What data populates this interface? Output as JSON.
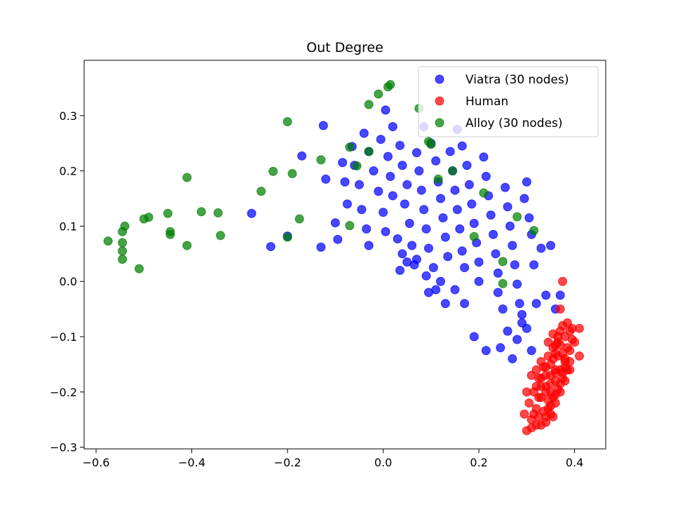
{
  "chart_data": {
    "type": "scatter",
    "title": "Out Degree",
    "xlabel": "",
    "ylabel": "",
    "xlim": [
      -0.625,
      0.465
    ],
    "ylim": [
      -0.303,
      0.4
    ],
    "xticks": [
      -0.6,
      -0.4,
      -0.2,
      0.0,
      0.2,
      0.4
    ],
    "xtick_labels": [
      "−0.6",
      "−0.4",
      "−0.2",
      "0.0",
      "0.2",
      "0.4"
    ],
    "yticks": [
      -0.3,
      -0.2,
      -0.1,
      0.0,
      0.1,
      0.2,
      0.3
    ],
    "ytick_labels": [
      "−0.3",
      "−0.2",
      "−0.1",
      "0.0",
      "0.1",
      "0.2",
      "0.3"
    ],
    "grid": false,
    "legend_position": "top-right",
    "series": [
      {
        "name": "Viatra (30 nodes)",
        "color": "#0000ff",
        "points": [
          [
            -0.275,
            0.123
          ],
          [
            -0.235,
            0.063
          ],
          [
            -0.2,
            0.082
          ],
          [
            -0.17,
            0.227
          ],
          [
            -0.13,
            0.062
          ],
          [
            -0.125,
            0.282
          ],
          [
            -0.12,
            0.185
          ],
          [
            -0.1,
            0.106
          ],
          [
            -0.095,
            0.076
          ],
          [
            -0.085,
            0.215
          ],
          [
            -0.08,
            0.18
          ],
          [
            -0.075,
            0.14
          ],
          [
            -0.065,
            0.244
          ],
          [
            -0.06,
            0.21
          ],
          [
            -0.05,
            0.175
          ],
          [
            -0.045,
            0.13
          ],
          [
            -0.04,
            0.268
          ],
          [
            -0.035,
            0.095
          ],
          [
            -0.03,
            0.235
          ],
          [
            -0.03,
            0.065
          ],
          [
            -0.02,
            0.2
          ],
          [
            -0.01,
            0.163
          ],
          [
            -0.005,
            0.257
          ],
          [
            0.0,
            0.125
          ],
          [
            0.005,
            0.09
          ],
          [
            0.005,
            0.31
          ],
          [
            0.01,
            0.226
          ],
          [
            0.015,
            0.19
          ],
          [
            0.02,
            0.155
          ],
          [
            0.02,
            0.28
          ],
          [
            0.03,
            0.077
          ],
          [
            0.035,
            0.246
          ],
          [
            0.04,
            0.21
          ],
          [
            0.045,
            0.14
          ],
          [
            0.05,
            0.175
          ],
          [
            0.055,
            0.105
          ],
          [
            0.06,
            0.065
          ],
          [
            0.065,
            0.03
          ],
          [
            0.07,
            0.233
          ],
          [
            0.075,
            0.2
          ],
          [
            0.08,
            0.165
          ],
          [
            0.085,
            0.13
          ],
          [
            0.09,
            0.095
          ],
          [
            0.085,
            0.28
          ],
          [
            0.095,
            0.06
          ],
          [
            0.1,
            0.25
          ],
          [
            0.105,
            0.025
          ],
          [
            0.11,
            0.218
          ],
          [
            0.115,
            0.18
          ],
          [
            0.12,
            0.15
          ],
          [
            0.125,
            0.115
          ],
          [
            0.13,
            0.08
          ],
          [
            0.135,
            0.045
          ],
          [
            0.14,
            0.235
          ],
          [
            0.145,
            0.2
          ],
          [
            0.15,
            0.165
          ],
          [
            0.155,
            0.13
          ],
          [
            0.16,
            0.095
          ],
          [
            0.155,
            0.275
          ],
          [
            0.165,
            0.055
          ],
          [
            0.17,
            0.025
          ],
          [
            0.165,
            0.245
          ],
          [
            0.175,
            0.21
          ],
          [
            0.18,
            0.175
          ],
          [
            0.185,
            0.14
          ],
          [
            0.19,
            0.105
          ],
          [
            0.195,
            0.07
          ],
          [
            0.2,
            0.035
          ],
          [
            0.2,
            0.0
          ],
          [
            0.21,
            0.225
          ],
          [
            0.215,
            0.19
          ],
          [
            0.22,
            0.155
          ],
          [
            0.225,
            0.12
          ],
          [
            0.23,
            0.085
          ],
          [
            0.235,
            0.05
          ],
          [
            0.24,
            0.015
          ],
          [
            0.24,
            -0.02
          ],
          [
            0.25,
            -0.05
          ],
          [
            0.255,
            0.17
          ],
          [
            0.26,
            0.135
          ],
          [
            0.265,
            0.1
          ],
          [
            0.27,
            0.065
          ],
          [
            0.275,
            0.03
          ],
          [
            0.28,
            -0.005
          ],
          [
            0.285,
            -0.04
          ],
          [
            0.29,
            -0.075
          ],
          [
            0.295,
            0.15
          ],
          [
            0.3,
            0.18
          ],
          [
            0.305,
            0.115
          ],
          [
            0.31,
            0.085
          ],
          [
            0.315,
            0.03
          ],
          [
            0.32,
            -0.04
          ],
          [
            0.33,
            0.06
          ],
          [
            0.34,
            -0.025
          ],
          [
            0.35,
            0.065
          ],
          [
            0.36,
            -0.05
          ],
          [
            0.37,
            -0.025
          ],
          [
            0.215,
            -0.125
          ],
          [
            0.245,
            -0.12
          ],
          [
            0.26,
            -0.09
          ],
          [
            0.27,
            -0.14
          ],
          [
            0.28,
            -0.105
          ],
          [
            0.29,
            -0.06
          ],
          [
            0.3,
            -0.085
          ],
          [
            0.31,
            -0.125
          ],
          [
            0.19,
            -0.1
          ],
          [
            0.17,
            -0.04
          ],
          [
            0.15,
            -0.015
          ],
          [
            0.13,
            -0.04
          ],
          [
            0.11,
            -0.015
          ],
          [
            0.12,
            0.0
          ],
          [
            0.095,
            -0.02
          ],
          [
            0.09,
            0.01
          ],
          [
            0.07,
            0.04
          ],
          [
            0.05,
            0.035
          ],
          [
            0.04,
            0.05
          ],
          [
            0.035,
            0.02
          ]
        ]
      },
      {
        "name": "Human",
        "color": "#ff0000",
        "points": [
          [
            0.375,
            0.0
          ],
          [
            0.37,
            -0.05
          ],
          [
            0.385,
            -0.075
          ],
          [
            0.395,
            -0.085
          ],
          [
            0.41,
            -0.085
          ],
          [
            0.4,
            -0.11
          ],
          [
            0.41,
            -0.135
          ],
          [
            0.39,
            -0.16
          ],
          [
            0.38,
            -0.18
          ],
          [
            0.37,
            -0.2
          ],
          [
            0.36,
            -0.22
          ],
          [
            0.35,
            -0.24
          ],
          [
            0.34,
            -0.255
          ],
          [
            0.33,
            -0.26
          ],
          [
            0.3,
            -0.27
          ],
          [
            0.31,
            -0.25
          ],
          [
            0.32,
            -0.23
          ],
          [
            0.325,
            -0.21
          ],
          [
            0.33,
            -0.19
          ],
          [
            0.34,
            -0.17
          ],
          [
            0.35,
            -0.15
          ],
          [
            0.36,
            -0.13
          ],
          [
            0.365,
            -0.11
          ],
          [
            0.37,
            -0.09
          ],
          [
            0.375,
            -0.08
          ],
          [
            0.38,
            -0.1
          ],
          [
            0.385,
            -0.12
          ],
          [
            0.38,
            -0.14
          ],
          [
            0.37,
            -0.16
          ],
          [
            0.36,
            -0.18
          ],
          [
            0.35,
            -0.2
          ],
          [
            0.345,
            -0.215
          ],
          [
            0.335,
            -0.235
          ],
          [
            0.325,
            -0.245
          ],
          [
            0.315,
            -0.24
          ],
          [
            0.305,
            -0.22
          ],
          [
            0.315,
            -0.2
          ],
          [
            0.325,
            -0.175
          ],
          [
            0.335,
            -0.155
          ],
          [
            0.345,
            -0.135
          ],
          [
            0.355,
            -0.12
          ],
          [
            0.365,
            -0.135
          ],
          [
            0.36,
            -0.16
          ],
          [
            0.35,
            -0.17
          ],
          [
            0.34,
            -0.19
          ],
          [
            0.33,
            -0.21
          ],
          [
            0.32,
            -0.19
          ],
          [
            0.31,
            -0.17
          ],
          [
            0.3,
            -0.2
          ],
          [
            0.295,
            -0.24
          ],
          [
            0.33,
            -0.145
          ],
          [
            0.345,
            -0.11
          ],
          [
            0.355,
            -0.095
          ],
          [
            0.37,
            -0.115
          ],
          [
            0.375,
            -0.13
          ],
          [
            0.38,
            -0.155
          ],
          [
            0.375,
            -0.175
          ],
          [
            0.365,
            -0.195
          ],
          [
            0.355,
            -0.21
          ],
          [
            0.345,
            -0.23
          ],
          [
            0.34,
            -0.245
          ],
          [
            0.35,
            -0.225
          ],
          [
            0.36,
            -0.205
          ],
          [
            0.37,
            -0.185
          ],
          [
            0.375,
            -0.165
          ],
          [
            0.38,
            -0.145
          ],
          [
            0.39,
            -0.125
          ],
          [
            0.395,
            -0.105
          ],
          [
            0.39,
            -0.09
          ],
          [
            0.355,
            -0.245
          ],
          [
            0.32,
            -0.26
          ],
          [
            0.31,
            -0.265
          ],
          [
            0.34,
            -0.2
          ],
          [
            0.35,
            -0.185
          ],
          [
            0.36,
            -0.165
          ],
          [
            0.33,
            -0.175
          ],
          [
            0.32,
            -0.16
          ],
          [
            0.34,
            -0.155
          ],
          [
            0.355,
            -0.14
          ],
          [
            0.36,
            -0.115
          ],
          [
            0.365,
            -0.1
          ],
          [
            0.385,
            -0.16
          ],
          [
            0.39,
            -0.145
          ]
        ]
      },
      {
        "name": "Alloy (30 nodes)",
        "color": "#008000",
        "points": [
          [
            -0.575,
            0.073
          ],
          [
            -0.545,
            0.04
          ],
          [
            -0.545,
            0.055
          ],
          [
            -0.545,
            0.07
          ],
          [
            -0.545,
            0.09
          ],
          [
            -0.54,
            0.1
          ],
          [
            -0.51,
            0.023
          ],
          [
            -0.5,
            0.113
          ],
          [
            -0.49,
            0.116
          ],
          [
            -0.45,
            0.123
          ],
          [
            -0.445,
            0.09
          ],
          [
            -0.445,
            0.085
          ],
          [
            -0.41,
            0.065
          ],
          [
            -0.41,
            0.188
          ],
          [
            -0.38,
            0.126
          ],
          [
            -0.345,
            0.124
          ],
          [
            -0.34,
            0.083
          ],
          [
            -0.255,
            0.163
          ],
          [
            -0.23,
            0.199
          ],
          [
            -0.2,
            0.08
          ],
          [
            -0.2,
            0.289
          ],
          [
            -0.19,
            0.195
          ],
          [
            -0.175,
            0.113
          ],
          [
            -0.13,
            0.22
          ],
          [
            -0.07,
            0.101
          ],
          [
            -0.07,
            0.243
          ],
          [
            -0.055,
            0.209
          ],
          [
            -0.03,
            0.32
          ],
          [
            -0.03,
            0.235
          ],
          [
            -0.01,
            0.339
          ],
          [
            0.01,
            0.352
          ],
          [
            0.015,
            0.356
          ],
          [
            0.075,
            0.313
          ],
          [
            0.095,
            0.253
          ],
          [
            0.1,
            0.248
          ],
          [
            0.115,
            0.185
          ],
          [
            0.145,
            0.2
          ],
          [
            0.19,
            0.081
          ],
          [
            0.21,
            0.16
          ],
          [
            0.25,
            0.036
          ],
          [
            0.25,
            -0.004
          ],
          [
            0.28,
            0.117
          ],
          [
            0.315,
            0.092
          ]
        ]
      }
    ]
  }
}
